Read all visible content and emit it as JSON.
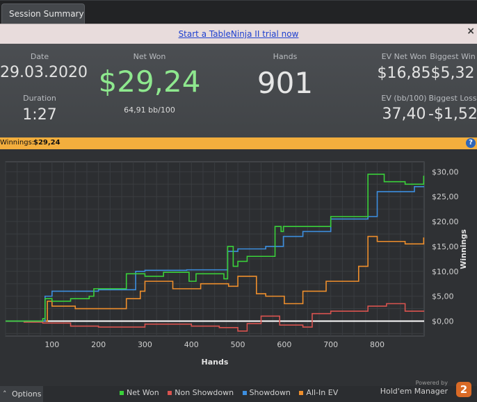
{
  "tab": {
    "label": "Session Summary"
  },
  "promo": {
    "link_text": "Start a TableNinja II trial now",
    "close_glyph": "×"
  },
  "stats": {
    "date_label": "Date",
    "date_value": "29.03.2020",
    "duration_label": "Duration",
    "duration_value": "1:27",
    "net_won_label": "Net Won",
    "net_won_value": "$29,24",
    "net_won_sub": "64,91 bb/100",
    "hands_label": "Hands",
    "hands_value": "901",
    "ev_net_won_label": "EV Net Won",
    "ev_net_won_value": "$16,85",
    "biggest_win_label": "Biggest Win",
    "biggest_win_value": "$5,32",
    "ev_bb_label": "EV (bb/100)",
    "ev_bb_value": "37,40",
    "biggest_loss_label": "Biggest Loss",
    "biggest_loss_value": "-$1,52"
  },
  "winnings_bar": {
    "label": "Winnings:",
    "value": "$29,24",
    "help_glyph": "?"
  },
  "footer": {
    "options_label": "Options",
    "powered_by": "Powered by",
    "brand_name": "Hold'em Manager",
    "brand_logo": "2"
  },
  "colors": {
    "net_won": "#3ad13a",
    "non_showdown": "#d9534f",
    "showdown": "#3d8fe0",
    "allin_ev": "#ef8f2c",
    "accent_bar": "#f3ae3d"
  },
  "chart_data": {
    "type": "line",
    "xlabel": "Hands",
    "ylabel": "Winnings",
    "xlim": [
      0,
      901
    ],
    "ylim": [
      -3,
      32
    ],
    "x_ticks": [
      100,
      200,
      300,
      400,
      500,
      600,
      700,
      800
    ],
    "y_ticks": [
      0,
      5,
      10,
      15,
      20,
      25,
      30
    ],
    "y_tick_labels": [
      "$0,00",
      "$5,00",
      "$10,00",
      "$15,00",
      "$20,00",
      "$25,00",
      "$30,00"
    ],
    "grid": true,
    "legend": "bottom",
    "series": [
      {
        "name": "Net Won",
        "color": "#3ad13a",
        "x": [
          0,
          60,
          80,
          85,
          100,
          140,
          180,
          190,
          215,
          260,
          300,
          340,
          395,
          410,
          470,
          478,
          490,
          500,
          520,
          580,
          593,
          598,
          640,
          700,
          780,
          815,
          860,
          900
        ],
        "values": [
          0,
          0,
          0.5,
          4.5,
          4,
          4.5,
          5,
          6.5,
          6.5,
          9.5,
          9,
          9.8,
          8,
          9.5,
          8.5,
          15,
          11,
          12,
          13,
          19,
          18,
          19,
          19,
          21,
          29.5,
          28,
          27.5,
          29.2
        ]
      },
      {
        "name": "Non Showdown",
        "color": "#d9534f",
        "x": [
          0,
          40,
          80,
          140,
          200,
          300,
          400,
          460,
          500,
          520,
          550,
          590,
          640,
          660,
          700,
          780,
          820,
          860,
          900
        ],
        "values": [
          0,
          -0.2,
          -0.4,
          -1,
          -1.2,
          -0.6,
          -1,
          -1.3,
          -2,
          -0.5,
          1,
          -0.8,
          -1.2,
          1.5,
          2,
          3,
          3.5,
          2,
          2.1
        ]
      },
      {
        "name": "Showdown",
        "color": "#3d8fe0",
        "x": [
          0,
          80,
          85,
          100,
          200,
          280,
          300,
          390,
          478,
          485,
          500,
          560,
          598,
          640,
          700,
          780,
          800,
          880,
          900
        ],
        "values": [
          0,
          0,
          5,
          6,
          6.3,
          10,
          10.2,
          10.3,
          14,
          14,
          14.5,
          15,
          17,
          18,
          20.5,
          21,
          26,
          27,
          27.1
        ]
      },
      {
        "name": "All-In EV",
        "color": "#ef8f2c",
        "x": [
          0,
          80,
          90,
          100,
          150,
          200,
          260,
          290,
          300,
          360,
          420,
          480,
          500,
          540,
          560,
          600,
          640,
          690,
          760,
          780,
          800,
          860,
          900
        ],
        "values": [
          0,
          0,
          4,
          3,
          2.5,
          2.5,
          4.5,
          6,
          8,
          6.5,
          7.5,
          7,
          9,
          5.5,
          5,
          3.5,
          6,
          8,
          11,
          17,
          16,
          15.5,
          16.8
        ]
      }
    ]
  }
}
